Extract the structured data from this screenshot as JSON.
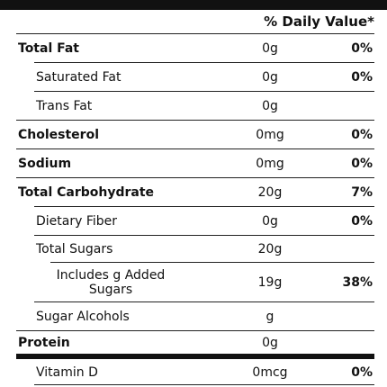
{
  "header": {
    "daily_value": "% Daily Value*"
  },
  "rows": [
    {
      "label": "Total Fat",
      "amount": "0g",
      "dv": "0%"
    },
    {
      "label": "Saturated Fat",
      "amount": "0g",
      "dv": "0%"
    },
    {
      "label": "Trans Fat",
      "amount": "0g"
    },
    {
      "label": "Cholesterol",
      "amount": "0mg",
      "dv": "0%"
    },
    {
      "label": "Sodium",
      "amount": "0mg",
      "dv": "0%"
    },
    {
      "label": "Total Carbohydrate",
      "amount": "20g",
      "dv": "7%"
    },
    {
      "label": "Dietary Fiber",
      "amount": "0g",
      "dv": "0%"
    },
    {
      "label": "Total Sugars",
      "amount": "20g"
    },
    {
      "label": "Includes g Added Sugars",
      "amount": "19g",
      "dv": "38%"
    },
    {
      "label": "Sugar Alcohols",
      "amount": "g"
    },
    {
      "label": "Protein",
      "amount": "0g"
    }
  ],
  "vitamins": [
    {
      "label": "Vitamin D",
      "amount": "0mcg",
      "dv": "0%"
    }
  ]
}
